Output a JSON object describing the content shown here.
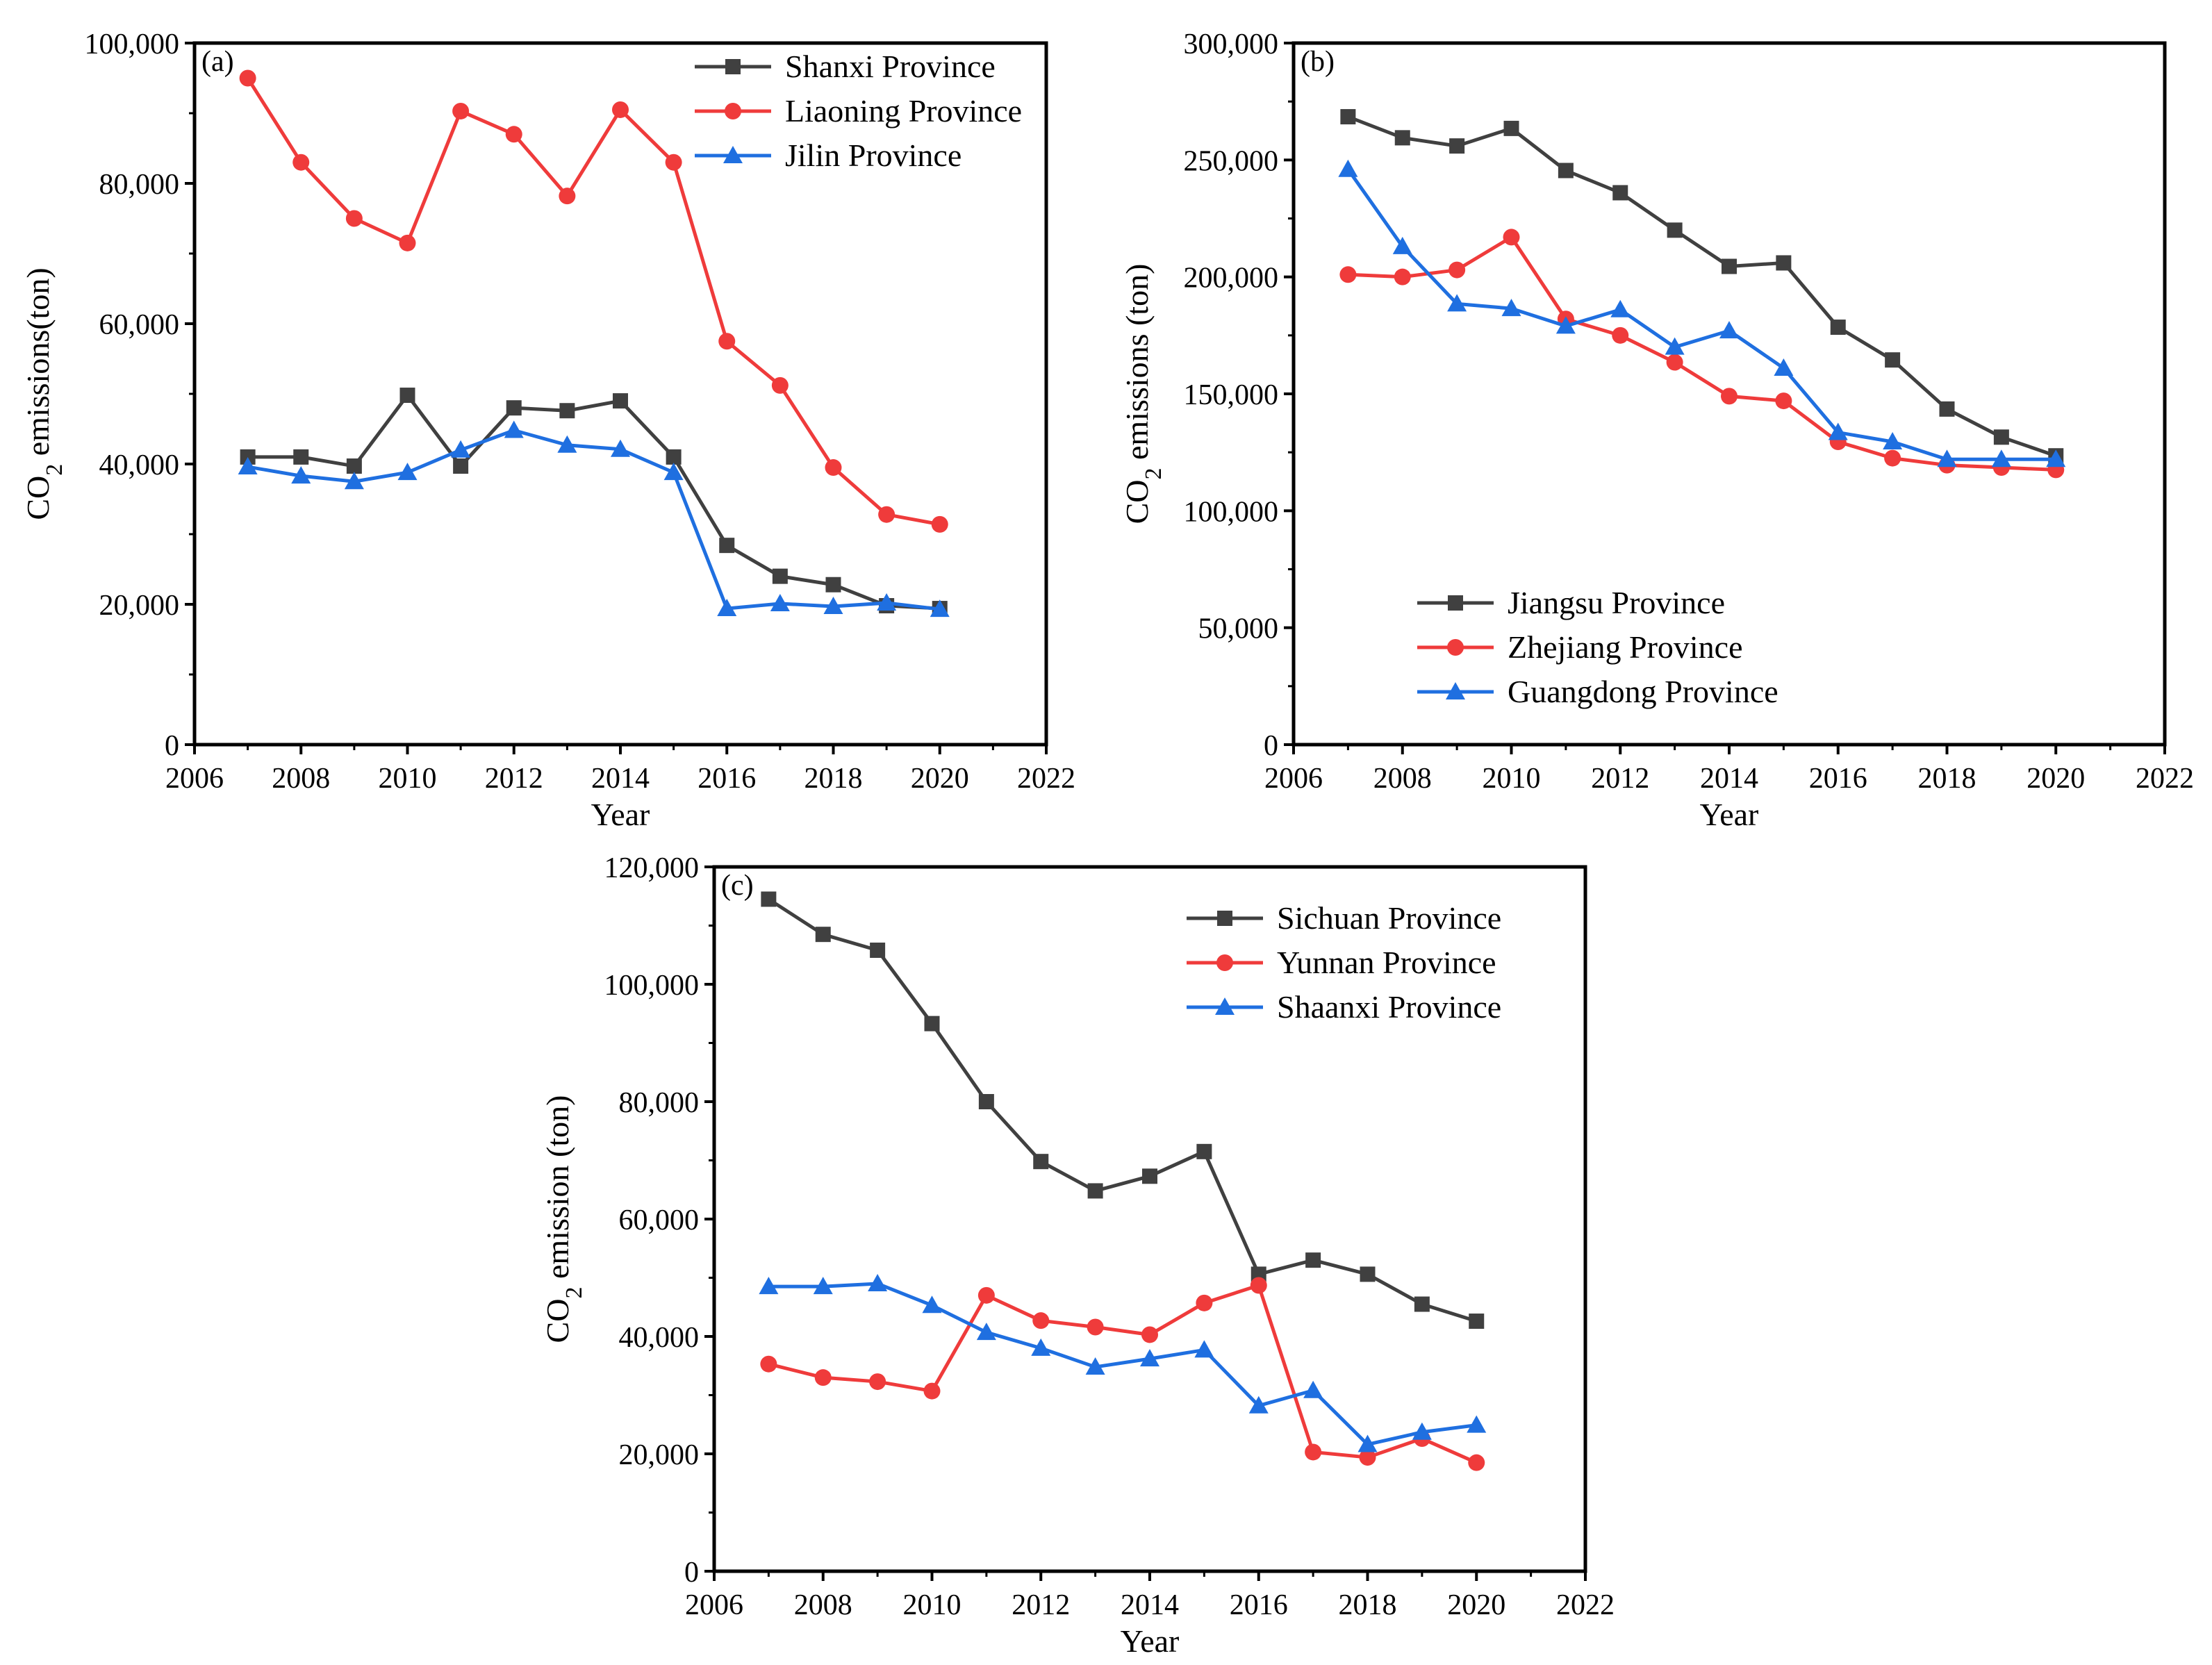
{
  "figure": {
    "background": "#ffffff"
  },
  "colors": {
    "black_series": "#404040",
    "red_series": "#ef3b3b",
    "blue_series": "#1f6fe0"
  },
  "chart_data": [
    {
      "id": "a",
      "panel_label": "(a)",
      "type": "line",
      "xlabel": "Year",
      "ylabel_main": "CO",
      "ylabel_sub": "2",
      "ylabel_rest": " emissions(ton)",
      "xlim": [
        2006,
        2022
      ],
      "ylim": [
        0,
        100000
      ],
      "xticks": [
        2006,
        2008,
        2010,
        2012,
        2014,
        2016,
        2018,
        2020,
        2022
      ],
      "xtick_labels": [
        "2006",
        "2008",
        "2010",
        "2012",
        "2014",
        "2016",
        "2018",
        "2020",
        "2022"
      ],
      "yticks": [
        0,
        20000,
        40000,
        60000,
        80000,
        100000
      ],
      "ytick_labels": [
        "0",
        "20,000",
        "40,000",
        "60,000",
        "80,000",
        "100,000"
      ],
      "legend_position": "top-right",
      "x": [
        2007,
        2008,
        2009,
        2010,
        2011,
        2012,
        2013,
        2014,
        2015,
        2016,
        2017,
        2018,
        2019,
        2020
      ],
      "series": [
        {
          "name": "Shanxi Province",
          "color": "#404040",
          "marker": "square",
          "values": [
            41000,
            41000,
            39700,
            49800,
            39700,
            48000,
            47600,
            49000,
            41000,
            28400,
            24000,
            22800,
            19800,
            19400
          ]
        },
        {
          "name": "Liaoning Province",
          "color": "#ef3b3b",
          "marker": "circle",
          "values": [
            95000,
            83000,
            75000,
            71500,
            90300,
            87000,
            78200,
            90500,
            83000,
            57500,
            51200,
            39500,
            32800,
            31400
          ]
        },
        {
          "name": "Jilin Province",
          "color": "#1f6fe0",
          "marker": "triangle",
          "values": [
            39600,
            38300,
            37500,
            38800,
            42000,
            44800,
            42700,
            42100,
            38800,
            19400,
            20100,
            19700,
            20200,
            19300
          ]
        }
      ]
    },
    {
      "id": "b",
      "panel_label": "(b)",
      "type": "line",
      "xlabel": "Year",
      "ylabel_main": "CO",
      "ylabel_sub": "2",
      "ylabel_rest": " emissions (ton)",
      "xlim": [
        2006,
        2022
      ],
      "ylim": [
        0,
        300000
      ],
      "xticks": [
        2006,
        2008,
        2010,
        2012,
        2014,
        2016,
        2018,
        2020,
        2022
      ],
      "xtick_labels": [
        "2006",
        "2008",
        "2010",
        "2012",
        "2014",
        "2016",
        "2018",
        "2020",
        "2022"
      ],
      "yticks": [
        0,
        50000,
        100000,
        150000,
        200000,
        250000,
        300000
      ],
      "ytick_labels": [
        "0",
        "50,000",
        "100,000",
        "150,000",
        "200,000",
        "250,000",
        "300,000"
      ],
      "legend_position": "bottom-left",
      "x": [
        2007,
        2008,
        2009,
        2010,
        2011,
        2012,
        2013,
        2014,
        2015,
        2016,
        2017,
        2018,
        2019,
        2020
      ],
      "series": [
        {
          "name": "Jiangsu Province",
          "color": "#404040",
          "marker": "square",
          "values": [
            268500,
            259500,
            256000,
            263500,
            245500,
            236000,
            220000,
            204500,
            206000,
            178500,
            164500,
            143500,
            131500,
            123500
          ]
        },
        {
          "name": "Zhejiang Province",
          "color": "#ef3b3b",
          "marker": "circle",
          "values": [
            201000,
            200000,
            203000,
            217000,
            182000,
            175000,
            163500,
            149000,
            147000,
            129500,
            122500,
            119500,
            118500,
            117500
          ]
        },
        {
          "name": "Guangdong Province",
          "color": "#1f6fe0",
          "marker": "triangle",
          "values": [
            246000,
            213000,
            188500,
            186500,
            179000,
            186000,
            170000,
            177000,
            161000,
            133500,
            129500,
            122000,
            122000,
            122000
          ]
        }
      ]
    },
    {
      "id": "c",
      "panel_label": "(c)",
      "type": "line",
      "xlabel": "Year",
      "ylabel_main": "CO",
      "ylabel_sub": "2",
      "ylabel_rest": " emission (ton)",
      "xlim": [
        2006,
        2022
      ],
      "ylim": [
        0,
        120000
      ],
      "xticks": [
        2006,
        2008,
        2010,
        2012,
        2014,
        2016,
        2018,
        2020,
        2022
      ],
      "xtick_labels": [
        "2006",
        "2008",
        "2010",
        "2012",
        "2014",
        "2016",
        "2018",
        "2020",
        "2022"
      ],
      "yticks": [
        0,
        20000,
        40000,
        60000,
        80000,
        100000,
        120000
      ],
      "ytick_labels": [
        "0",
        "20,000",
        "40,000",
        "60,000",
        "80,000",
        "100,000",
        "120,000"
      ],
      "legend_position": "top-right",
      "x": [
        2007,
        2008,
        2009,
        2010,
        2011,
        2012,
        2013,
        2014,
        2015,
        2016,
        2017,
        2018,
        2019,
        2020
      ],
      "series": [
        {
          "name": "Sichuan Province",
          "color": "#404040",
          "marker": "square",
          "values": [
            114500,
            108500,
            105800,
            93300,
            80000,
            69800,
            64800,
            67300,
            71500,
            50600,
            53000,
            50600,
            45500,
            42600
          ]
        },
        {
          "name": "Yunnan Province",
          "color": "#ef3b3b",
          "marker": "circle",
          "values": [
            35300,
            33000,
            32300,
            30700,
            47000,
            42700,
            41600,
            40300,
            45700,
            48700,
            20300,
            19400,
            22600,
            18500
          ]
        },
        {
          "name": "Shaanxi Province",
          "color": "#1f6fe0",
          "marker": "triangle",
          "values": [
            48500,
            48500,
            49000,
            45300,
            40700,
            38000,
            34800,
            36200,
            37700,
            28200,
            30800,
            21600,
            23700,
            24900
          ]
        }
      ]
    }
  ]
}
